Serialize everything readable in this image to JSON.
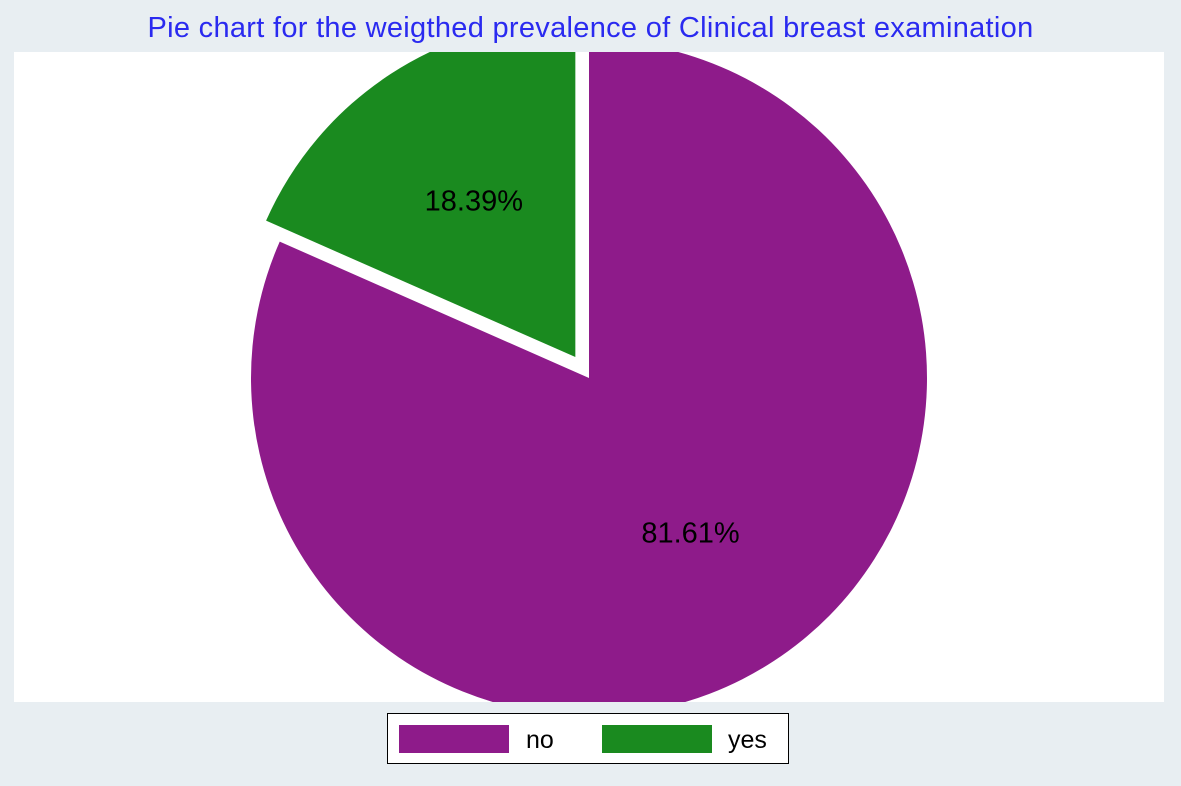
{
  "chart_data": {
    "type": "pie",
    "title": "Pie chart for the weigthed prevalence of Clinical breast examination",
    "slices": [
      {
        "label": "no",
        "value": 81.61,
        "value_label": "81.61%",
        "color": "#8e1b8a",
        "exploded": false
      },
      {
        "label": "yes",
        "value": 18.39,
        "value_label": "18.39%",
        "color": "#1a8a1f",
        "exploded": true
      }
    ],
    "start_angle_deg": 0,
    "direction": "clockwise",
    "legend_position": "bottom-center",
    "background_color": "#e8eef2",
    "plot_background_color": "#ffffff",
    "title_color": "#2a2af0"
  }
}
